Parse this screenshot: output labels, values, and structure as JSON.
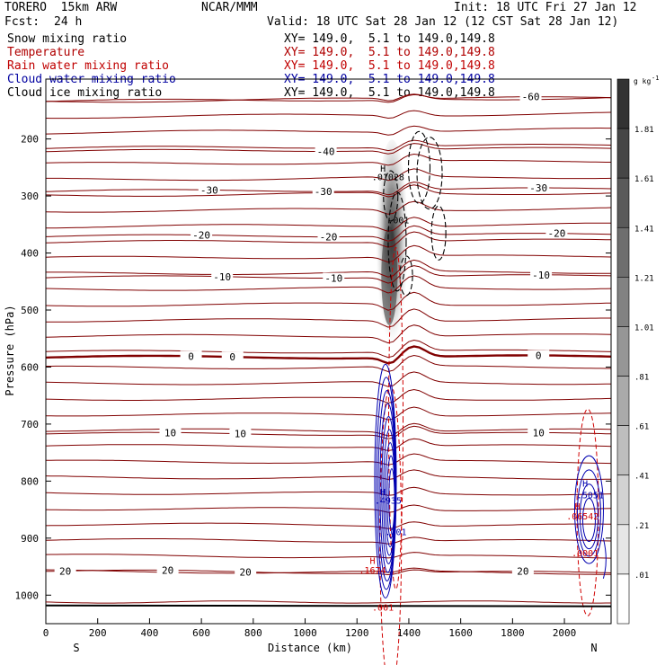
{
  "header": {
    "model": "TORERO  15km ARW",
    "org": "NCAR/MMM",
    "init": "Init: 18 UTC Fri 27 Jan 12",
    "fcst_label": "Fcst:",
    "fcst_value": "24 h",
    "valid": "Valid: 18 UTC Sat 28 Jan 12 (12 CST Sat 28 Jan 12)"
  },
  "legend": [
    {
      "label": "Snow mixing ratio",
      "color": "#000000",
      "xy": ""
    },
    {
      "label": "Temperature",
      "color": "#b00000",
      "xy": "XY= 149.0,  5.1 to 149.0,149.8"
    },
    {
      "label": "Rain water mixing ratio",
      "color": "#c00000",
      "xy": "XY= 149.0,  5.1 to 149.0,149.8"
    },
    {
      "label": "Cloud water mixing ratio",
      "color": "#0000a0",
      "xy": "XY= 149.0,  5.1 to 149.0,149.8"
    },
    {
      "label": "Cloud ice mixing ratio",
      "color": "#000000",
      "xy": "XY= 149.0,  5.1 to 149.0,149.8"
    }
  ],
  "header_xy": "XY= 149.0,  5.1 to 149.0,149.8",
  "chart_data": {
    "type": "cross-section contour",
    "xlabel": "Distance (km)",
    "ylabel": "Pressure (hPa)",
    "xlim": [
      0,
      2180
    ],
    "ylim": [
      1050,
      95
    ],
    "x_ticks": [
      0,
      200,
      400,
      600,
      800,
      1000,
      1200,
      1400,
      1600,
      1800,
      2000
    ],
    "y_ticks": [
      200,
      300,
      400,
      500,
      600,
      700,
      800,
      900,
      1000
    ],
    "x_end_labels": {
      "left": "S",
      "right": "N"
    },
    "colorbar": {
      "unit": "g kg",
      "unit_exponent": "-1",
      "labels": [
        "1.81",
        "1.61",
        "1.41",
        "1.21",
        "1.01",
        ".81",
        ".61",
        ".41",
        ".21",
        ".01"
      ]
    },
    "temperature_isotherms": [
      {
        "value": -60,
        "pressure": 134,
        "labels": [
          {
            "x": 1870,
            "text": "-60"
          }
        ]
      },
      {
        "value": -40,
        "pressure": 222,
        "labels": [
          {
            "x": 1080,
            "text": "-40"
          }
        ]
      },
      {
        "value": -30,
        "pressure": 292,
        "labels": [
          {
            "x": 630,
            "text": "-30"
          },
          {
            "x": 1070,
            "text": "-30"
          },
          {
            "x": 1900,
            "text": "-30"
          }
        ]
      },
      {
        "value": -20,
        "pressure": 371,
        "labels": [
          {
            "x": 600,
            "text": "-20"
          },
          {
            "x": 1090,
            "text": "-20"
          },
          {
            "x": 1970,
            "text": "-20"
          }
        ]
      },
      {
        "value": -10,
        "pressure": 443,
        "labels": [
          {
            "x": 680,
            "text": "-10"
          },
          {
            "x": 1110,
            "text": "-10"
          },
          {
            "x": 1910,
            "text": "-10"
          }
        ]
      },
      {
        "value": 0,
        "pressure": 583,
        "bold": true,
        "labels": [
          {
            "x": 560,
            "text": "0"
          },
          {
            "x": 720,
            "text": "0"
          },
          {
            "x": 1900,
            "text": "0"
          }
        ]
      },
      {
        "value": 10,
        "pressure": 717,
        "labels": [
          {
            "x": 480,
            "text": "10"
          },
          {
            "x": 750,
            "text": "10"
          },
          {
            "x": 1900,
            "text": "10"
          }
        ]
      },
      {
        "value": 20,
        "pressure": 958,
        "labels": [
          {
            "x": 75,
            "text": "20"
          },
          {
            "x": 470,
            "text": "20"
          },
          {
            "x": 770,
            "text": "20"
          },
          {
            "x": 1840,
            "text": "20"
          }
        ]
      }
    ],
    "isotherm_count": 31,
    "ground_pressure": 1018,
    "cloud_water_labels": [
      {
        "x": 1300,
        "p": 825,
        "text": "H"
      },
      {
        "x": 1320,
        "p": 840,
        "text": ".4935"
      },
      {
        "x": 1350,
        "p": 895,
        "text": ".001"
      },
      {
        "x": 2080,
        "p": 810,
        "text": "H"
      },
      {
        "x": 2100,
        "p": 830,
        "text": ".5051"
      }
    ],
    "rain_water_labels": [
      {
        "x": 1260,
        "p": 945,
        "text": "H"
      },
      {
        "x": 1260,
        "p": 962,
        "text": ".1674"
      },
      {
        "x": 1300,
        "p": 1027,
        "text": ".001"
      },
      {
        "x": 2050,
        "p": 850,
        "text": "H"
      },
      {
        "x": 2070,
        "p": 867,
        "text": ".06542"
      },
      {
        "x": 2080,
        "p": 932,
        "text": ".0001"
      }
    ],
    "ice_labels": [
      {
        "x": 1300,
        "p": 257,
        "text": "H"
      },
      {
        "x": 1320,
        "p": 272,
        "text": ".01028"
      },
      {
        "x": 1360,
        "p": 348,
        "text": ".001"
      }
    ]
  },
  "colors": {
    "temperature": "#800000",
    "rain": "#d00000",
    "cloud_water": "#0000b0",
    "ice": "#000000"
  }
}
